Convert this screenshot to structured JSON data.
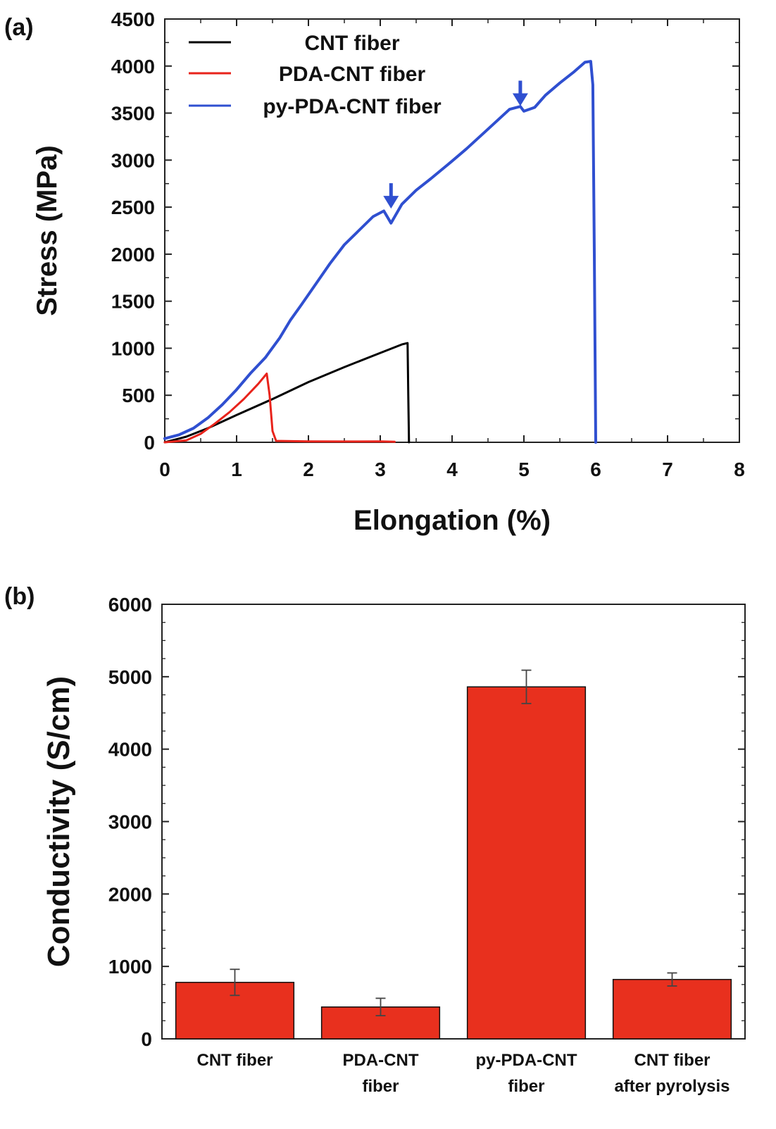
{
  "chart_data": [
    {
      "panel": "(a)",
      "type": "line",
      "xlabel": "Elongation (%)",
      "ylabel": "Stress (MPa)",
      "xlim": [
        0,
        8
      ],
      "ylim": [
        0,
        4500
      ],
      "xticks": [
        0,
        1,
        2,
        3,
        4,
        5,
        6,
        7,
        8
      ],
      "yticks": [
        0,
        500,
        1000,
        1500,
        2000,
        2500,
        3000,
        3500,
        4000,
        4500
      ],
      "legend_position": "top-left",
      "series": [
        {
          "name": "CNT fiber",
          "color": "#000000",
          "points": [
            [
              0,
              0
            ],
            [
              0.3,
              60
            ],
            [
              0.6,
              150
            ],
            [
              1.0,
              290
            ],
            [
              1.5,
              460
            ],
            [
              2.0,
              640
            ],
            [
              2.5,
              800
            ],
            [
              3.0,
              950
            ],
            [
              3.3,
              1040
            ],
            [
              3.38,
              1055
            ],
            [
              3.39,
              500
            ],
            [
              3.4,
              0
            ]
          ]
        },
        {
          "name": "PDA-CNT fiber",
          "color": "#e8231b",
          "points": [
            [
              0,
              0
            ],
            [
              0.3,
              20
            ],
            [
              0.5,
              90
            ],
            [
              0.7,
              200
            ],
            [
              0.9,
              320
            ],
            [
              1.1,
              460
            ],
            [
              1.3,
              620
            ],
            [
              1.42,
              730
            ],
            [
              1.46,
              500
            ],
            [
              1.5,
              120
            ],
            [
              1.55,
              15
            ],
            [
              2.0,
              10
            ],
            [
              2.5,
              8
            ],
            [
              3.0,
              10
            ],
            [
              3.2,
              5
            ]
          ]
        },
        {
          "name": "py-PDA-CNT fiber",
          "color": "#2f4fd0",
          "points": [
            [
              0,
              40
            ],
            [
              0.2,
              80
            ],
            [
              0.4,
              150
            ],
            [
              0.6,
              260
            ],
            [
              0.8,
              400
            ],
            [
              1.0,
              560
            ],
            [
              1.2,
              740
            ],
            [
              1.4,
              900
            ],
            [
              1.6,
              1110
            ],
            [
              1.75,
              1300
            ],
            [
              1.9,
              1460
            ],
            [
              2.1,
              1680
            ],
            [
              2.3,
              1900
            ],
            [
              2.5,
              2100
            ],
            [
              2.7,
              2250
            ],
            [
              2.9,
              2400
            ],
            [
              3.05,
              2460
            ],
            [
              3.15,
              2330
            ],
            [
              3.3,
              2530
            ],
            [
              3.5,
              2680
            ],
            [
              3.7,
              2800
            ],
            [
              4.0,
              2990
            ],
            [
              4.2,
              3120
            ],
            [
              4.5,
              3330
            ],
            [
              4.8,
              3540
            ],
            [
              4.95,
              3570
            ],
            [
              5.0,
              3520
            ],
            [
              5.15,
              3560
            ],
            [
              5.3,
              3690
            ],
            [
              5.5,
              3820
            ],
            [
              5.7,
              3940
            ],
            [
              5.85,
              4040
            ],
            [
              5.93,
              4050
            ],
            [
              5.96,
              3800
            ],
            [
              5.98,
              2000
            ],
            [
              6.0,
              0
            ]
          ]
        }
      ],
      "annotations": [
        {
          "type": "arrow",
          "x": 3.15,
          "y": 2530,
          "direction": "down"
        },
        {
          "type": "arrow",
          "x": 4.95,
          "y": 3620,
          "direction": "down"
        }
      ]
    },
    {
      "panel": "(b)",
      "type": "bar",
      "ylabel": "Conductivity (S/cm)",
      "ylim": [
        0,
        6000
      ],
      "yticks": [
        0,
        1000,
        2000,
        3000,
        4000,
        5000,
        6000
      ],
      "categories": [
        [
          "CNT fiber"
        ],
        [
          "PDA-CNT",
          "fiber"
        ],
        [
          "py-PDA-CNT",
          "fiber"
        ],
        [
          "CNT fiber",
          "after pyrolysis"
        ]
      ],
      "values": [
        780,
        440,
        4860,
        820
      ],
      "errors": [
        180,
        120,
        230,
        90
      ],
      "bar_color": "#e8301e"
    }
  ]
}
